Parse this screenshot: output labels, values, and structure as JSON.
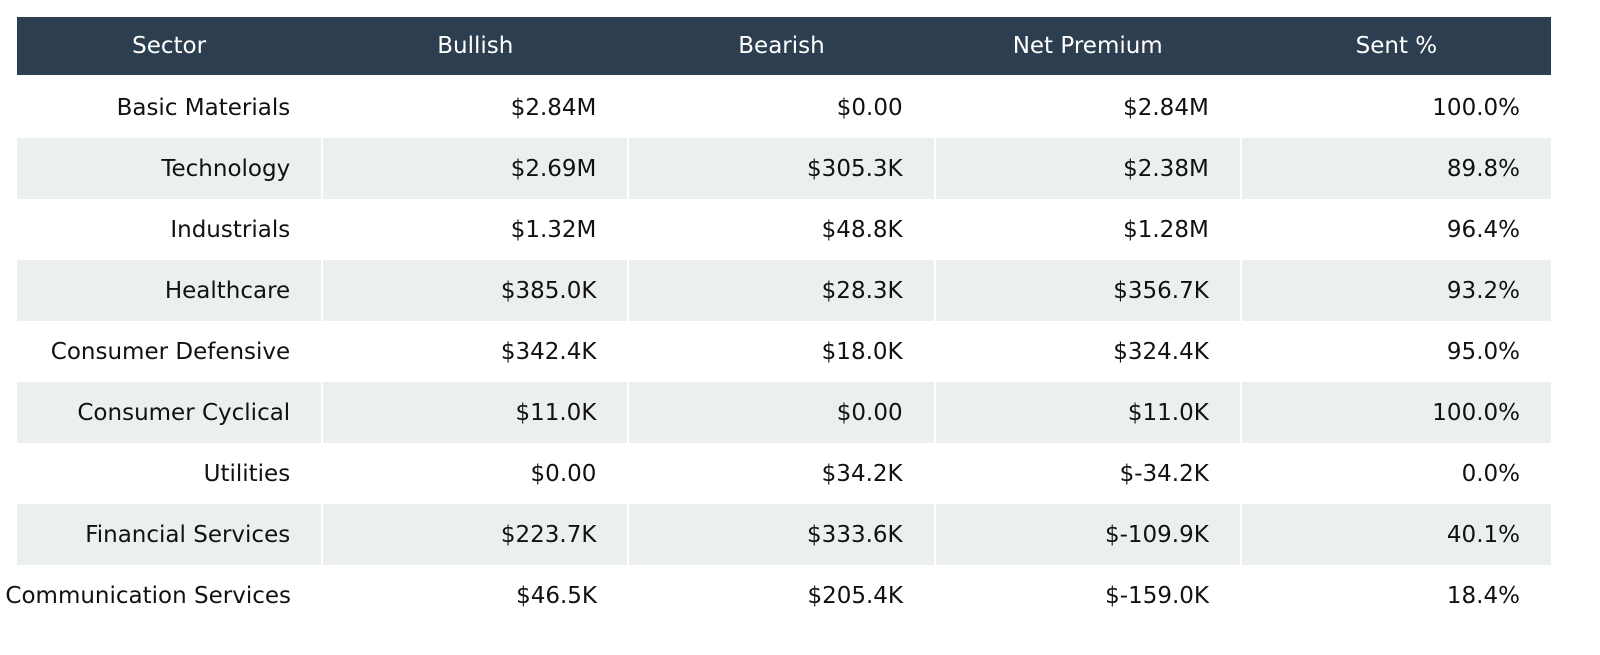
{
  "table": {
    "columns": [
      "Sector",
      "Bullish",
      "Bearish",
      "Net Premium",
      "Sent %"
    ],
    "rows": [
      [
        "Basic Materials",
        "$2.84M",
        "$0.00",
        "$2.84M",
        "100.0%"
      ],
      [
        "Technology",
        "$2.69M",
        "$305.3K",
        "$2.38M",
        "89.8%"
      ],
      [
        "Industrials",
        "$1.32M",
        "$48.8K",
        "$1.28M",
        "96.4%"
      ],
      [
        "Healthcare",
        "$385.0K",
        "$28.3K",
        "$356.7K",
        "93.2%"
      ],
      [
        "Consumer Defensive",
        "$342.4K",
        "$18.0K",
        "$324.4K",
        "95.0%"
      ],
      [
        "Consumer Cyclical",
        "$11.0K",
        "$0.00",
        "$11.0K",
        "100.0%"
      ],
      [
        "Utilities",
        "$0.00",
        "$34.2K",
        "$-34.2K",
        "0.0%"
      ],
      [
        "Financial Services",
        "$223.7K",
        "$333.6K",
        "$-109.9K",
        "40.1%"
      ],
      [
        "Communication Services",
        "$46.5K",
        "$205.4K",
        "$-159.0K",
        "18.4%"
      ]
    ]
  }
}
